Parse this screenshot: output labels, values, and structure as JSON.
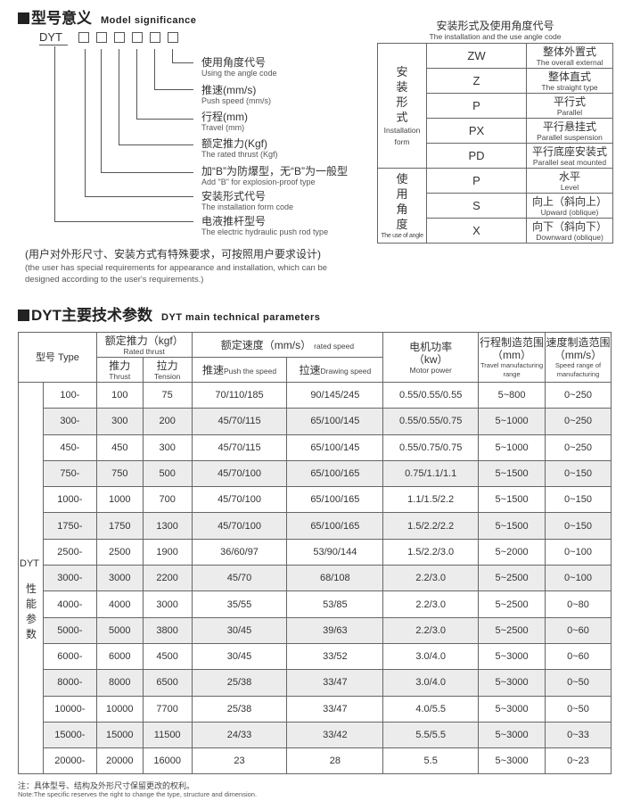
{
  "model_section": {
    "title_cn": "型号意义",
    "title_en": "Model significance",
    "prefix": "DYT",
    "labels": [
      {
        "cn": "使用角度代号",
        "en": "Using the angle code"
      },
      {
        "cn": "推速(mm/s)",
        "en": "Push speed (mm/s)"
      },
      {
        "cn": "行程(mm)",
        "en": "Travel (mm)"
      },
      {
        "cn": "额定推力(Kgf)",
        "en": "The rated thrust (Kgf)"
      },
      {
        "cn": "加“B”为防爆型，无“B”为一般型",
        "en": "Add \"B\" for explosion-proof type"
      },
      {
        "cn": "安装形式代号",
        "en": "The installation form code"
      },
      {
        "cn": "电液推杆型号",
        "en": "The electric hydraulic push rod type"
      }
    ],
    "note_cn": "(用户对外形尺寸、安装方式有特殊要求，可按照用户要求设计)",
    "note_en": "(the user has special requirements for appearance and installation, which can be designed according to the user's requirements.)"
  },
  "code_table": {
    "title_cn": "安装形式及使用角度代号",
    "title_en": "The installation and the use angle code",
    "groups": [
      {
        "cn": "安装形式",
        "en": "Installation form",
        "rows": [
          {
            "code": "ZW",
            "cn": "整体外置式",
            "en": "The overall external"
          },
          {
            "code": "Z",
            "cn": "整体直式",
            "en": "The straight type"
          },
          {
            "code": "P",
            "cn": "平行式",
            "en": "Parallel"
          },
          {
            "code": "PX",
            "cn": "平行悬挂式",
            "en": "Parallel suspension"
          },
          {
            "code": "PD",
            "cn": "平行底座安装式",
            "en": "Parallel seat mounted"
          }
        ]
      },
      {
        "cn": "使用角度",
        "en": "The use of angle",
        "rows": [
          {
            "code": "P",
            "cn": "水平",
            "en": "Level"
          },
          {
            "code": "S",
            "cn": "向上（斜向上）",
            "en": "Upward (oblique)"
          },
          {
            "code": "X",
            "cn": "向下（斜向下）",
            "en": "Downward (oblique)"
          }
        ]
      }
    ]
  },
  "spec_section": {
    "title_cn": "DYT主要技术参数",
    "title_en": "DYT main technical parameters",
    "headers": {
      "type": "型号 Type",
      "thrust_cn": "额定推力（kgf）",
      "thrust_en": "Rated thrust",
      "push_cn": "推力",
      "push_en": "Thrust",
      "pull_cn": "拉力",
      "pull_en": "Tension",
      "speed_cn": "额定速度（mm/s）",
      "speed_en": "rated speed",
      "pspeed_cn": "推速",
      "pspeed_en": "Push the speed",
      "dspeed_cn": "拉速",
      "dspeed_en": "Drawing speed",
      "power_cn": "电机功率",
      "power_unit": "（kw）",
      "power_en": "Motor power",
      "travel_cn": "行程制造范围",
      "travel_unit": "（mm）",
      "travel_en": "Travel manufacturing range",
      "srange_cn": "速度制造范围",
      "srange_unit": "（mm/s）",
      "srange_en": "Speed range of manufacturing"
    },
    "series_label": "DYT",
    "group_label": "性能参数",
    "rows": [
      [
        "100-",
        "100",
        "75",
        "70/110/185",
        "90/145/245",
        "0.55/0.55/0.55",
        "5~800",
        "0~250"
      ],
      [
        "300-",
        "300",
        "200",
        "45/70/115",
        "65/100/145",
        "0.55/0.55/0.75",
        "5~1000",
        "0~250"
      ],
      [
        "450-",
        "450",
        "300",
        "45/70/115",
        "65/100/145",
        "0.55/0.75/0.75",
        "5~1000",
        "0~250"
      ],
      [
        "750-",
        "750",
        "500",
        "45/70/100",
        "65/100/165",
        "0.75/1.1/1.1",
        "5~1500",
        "0~150"
      ],
      [
        "1000-",
        "1000",
        "700",
        "45/70/100",
        "65/100/165",
        "1.1/1.5/2.2",
        "5~1500",
        "0~150"
      ],
      [
        "1750-",
        "1750",
        "1300",
        "45/70/100",
        "65/100/165",
        "1.5/2.2/2.2",
        "5~1500",
        "0~150"
      ],
      [
        "2500-",
        "2500",
        "1900",
        "36/60/97",
        "53/90/144",
        "1.5/2.2/3.0",
        "5~2000",
        "0~100"
      ],
      [
        "3000-",
        "3000",
        "2200",
        "45/70",
        "68/108",
        "2.2/3.0",
        "5~2500",
        "0~100"
      ],
      [
        "4000-",
        "4000",
        "3000",
        "35/55",
        "53/85",
        "2.2/3.0",
        "5~2500",
        "0~80"
      ],
      [
        "5000-",
        "5000",
        "3800",
        "30/45",
        "39/63",
        "2.2/3.0",
        "5~2500",
        "0~60"
      ],
      [
        "6000-",
        "6000",
        "4500",
        "30/45",
        "33/52",
        "3.0/4.0",
        "5~3000",
        "0~60"
      ],
      [
        "8000-",
        "8000",
        "6500",
        "25/38",
        "33/47",
        "3.0/4.0",
        "5~3000",
        "0~50"
      ],
      [
        "10000-",
        "10000",
        "7700",
        "25/38",
        "33/47",
        "4.0/5.5",
        "5~3000",
        "0~50"
      ],
      [
        "15000-",
        "15000",
        "11500",
        "24/33",
        "33/42",
        "5.5/5.5",
        "5~3000",
        "0~33"
      ],
      [
        "20000-",
        "20000",
        "16000",
        "23",
        "28",
        "5.5",
        "5~3000",
        "0~23"
      ]
    ],
    "note_cn": "注：具体型号、结构及外形尺寸保留更改的权利。",
    "note_en": "Note:The specific reserves the right to change the type, structure and dimension."
  }
}
